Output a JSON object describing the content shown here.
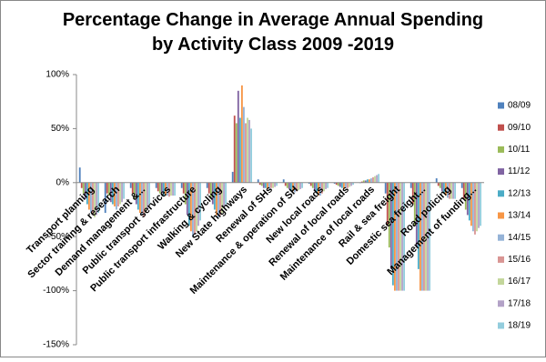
{
  "chart_data": {
    "type": "bar",
    "title": [
      "Percentage Change in Average Annual Spending",
      "by Activity Class 2009 -2019"
    ],
    "categories": [
      "Transport planning",
      "Sector training & research",
      "Demand management &...",
      "Public transport services",
      "Public transport infrastructure",
      "Walking & cycling",
      "New State highways",
      "Renewal of SHs",
      "Maintenance & operation of SH",
      "New local roads",
      "Renewal of local roads",
      "Maintenance of local roads",
      "Rail & sea freight",
      "Domestic sea freight...",
      "Road policing",
      "Management of funding..."
    ],
    "series": [
      {
        "name": "08/09",
        "color": "#4f81bd",
        "values": [
          14,
          -28,
          -5,
          -5,
          -5,
          -5,
          10,
          3,
          3,
          -1,
          -1,
          0,
          -10,
          -5,
          4,
          -5
        ]
      },
      {
        "name": "09/10",
        "color": "#c0504d",
        "values": [
          -5,
          -10,
          -10,
          -8,
          -10,
          -10,
          62,
          -2,
          -3,
          -3,
          -2,
          1,
          -40,
          -20,
          -3,
          -15
        ]
      },
      {
        "name": "10/11",
        "color": "#9bbb59",
        "values": [
          -10,
          -12,
          -15,
          -10,
          -20,
          -15,
          55,
          -3,
          -5,
          -5,
          -3,
          2,
          -60,
          -40,
          -5,
          -25
        ]
      },
      {
        "name": "11/12",
        "color": "#8064a2",
        "values": [
          -15,
          -18,
          -20,
          -10,
          -30,
          -20,
          85,
          -5,
          -6,
          -8,
          -4,
          2,
          -80,
          -60,
          -8,
          -30
        ]
      },
      {
        "name": "12/13",
        "color": "#4bacc6",
        "values": [
          -20,
          -20,
          -25,
          -12,
          -40,
          -25,
          60,
          -5,
          -8,
          -10,
          -5,
          3,
          -95,
          -80,
          -10,
          -35
        ]
      },
      {
        "name": "13/14",
        "color": "#f79646",
        "values": [
          -25,
          -22,
          -28,
          -12,
          -45,
          -30,
          90,
          -6,
          -8,
          -12,
          -6,
          3,
          -100,
          -100,
          -12,
          -40
        ]
      },
      {
        "name": "14/15",
        "color": "#95b3d7",
        "values": [
          -28,
          -25,
          -30,
          -12,
          -50,
          -32,
          70,
          -6,
          -9,
          -12,
          -5,
          4,
          -100,
          -100,
          -14,
          -45
        ]
      },
      {
        "name": "15/16",
        "color": "#d99694",
        "values": [
          -30,
          -22,
          -32,
          -13,
          -48,
          -30,
          55,
          -5,
          -8,
          -10,
          -5,
          5,
          -100,
          -100,
          -15,
          -48
        ]
      },
      {
        "name": "16/17",
        "color": "#c3d69b",
        "values": [
          -32,
          -20,
          -28,
          -12,
          -45,
          -28,
          60,
          -5,
          -7,
          -8,
          -4,
          6,
          -100,
          -100,
          -15,
          -45
        ]
      },
      {
        "name": "17/18",
        "color": "#b3a2c7",
        "values": [
          -30,
          -18,
          -25,
          -12,
          -40,
          -22,
          58,
          -4,
          -6,
          -6,
          -3,
          7,
          -100,
          -100,
          -15,
          -42
        ]
      },
      {
        "name": "18/19",
        "color": "#93cddd",
        "values": [
          -28,
          -15,
          -20,
          -12,
          -35,
          -20,
          50,
          -3,
          -5,
          -5,
          -2,
          8,
          -100,
          -100,
          -15,
          -40
        ]
      }
    ],
    "ylim": [
      -150,
      100
    ],
    "yticks": [
      {
        "value": -150,
        "label": "-150%"
      },
      {
        "value": -100,
        "label": "-100%"
      },
      {
        "value": -50,
        "label": "-50%"
      },
      {
        "value": 0,
        "label": "0%"
      },
      {
        "value": 50,
        "label": "50%"
      },
      {
        "value": 100,
        "label": "100%"
      }
    ],
    "grid": false,
    "legend": "right"
  }
}
